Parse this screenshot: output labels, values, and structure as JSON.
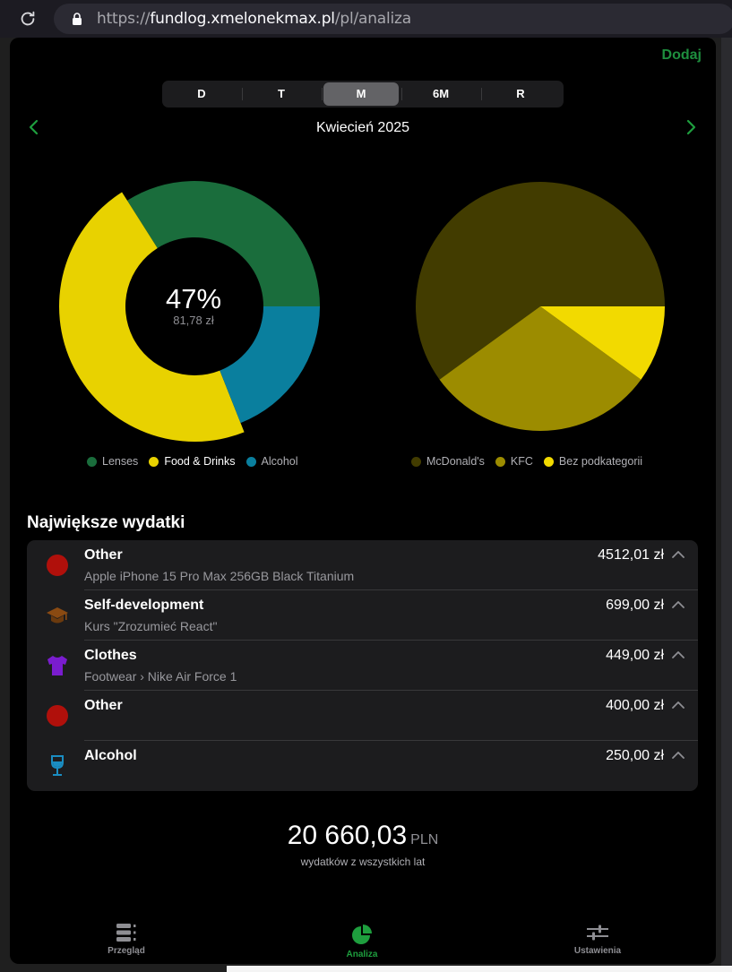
{
  "browser": {
    "url_prefix": "https://",
    "url_domain": "fundlog.xmelonekmax.pl",
    "url_path": "/pl/analiza"
  },
  "header": {
    "add_label": "Dodaj"
  },
  "periods": [
    {
      "label": "D",
      "active": false
    },
    {
      "label": "T",
      "active": false
    },
    {
      "label": "M",
      "active": true
    },
    {
      "label": "6M",
      "active": false
    },
    {
      "label": "R",
      "active": false
    }
  ],
  "month": {
    "title": "Kwiecień 2025"
  },
  "donut": {
    "center_pct": "47%",
    "center_value": "81,78 zł",
    "segments": [
      {
        "name": "Lenses",
        "value": 34,
        "color": "#1a6d3c"
      },
      {
        "name": "Food & Drinks",
        "value": 47,
        "color": "#e8d200"
      },
      {
        "name": "Alcohol",
        "value": 19,
        "color": "#0a7f9e"
      }
    ],
    "highlighted": "Food & Drinks"
  },
  "pie": {
    "segments": [
      {
        "name": "McDonald's",
        "value": 60,
        "color": "#423c00"
      },
      {
        "name": "KFC",
        "value": 30,
        "color": "#9c8c00"
      },
      {
        "name": "Bez podkategorii",
        "value": 10,
        "color": "#f2da00"
      }
    ]
  },
  "expenses": {
    "title": "Największe wydatki",
    "items": [
      {
        "category": "Other",
        "description": "Apple iPhone 15 Pro Max 256GB Black Titanium",
        "amount": "4512,01 zł",
        "icon": "red-circle-icon"
      },
      {
        "category": "Self-development",
        "description": "Kurs \"Zrozumieć React\"",
        "amount": "699,00 zł",
        "icon": "graduation-cap-icon"
      },
      {
        "category": "Clothes",
        "description": "Footwear › Nike Air Force 1",
        "amount": "449,00 zł",
        "icon": "tshirt-icon"
      },
      {
        "category": "Other",
        "description": "",
        "amount": "400,00 zł",
        "icon": "red-circle-icon"
      },
      {
        "category": "Alcohol",
        "description": "",
        "amount": "250,00 zł",
        "icon": "wine-glass-icon"
      }
    ]
  },
  "total": {
    "amount": "20 660,03",
    "currency": "PLN",
    "subtitle": "wydatków z wszystkich lat"
  },
  "tabbar": {
    "overview": "Przegląd",
    "analysis": "Analiza",
    "settings": "Ustawienia"
  }
}
